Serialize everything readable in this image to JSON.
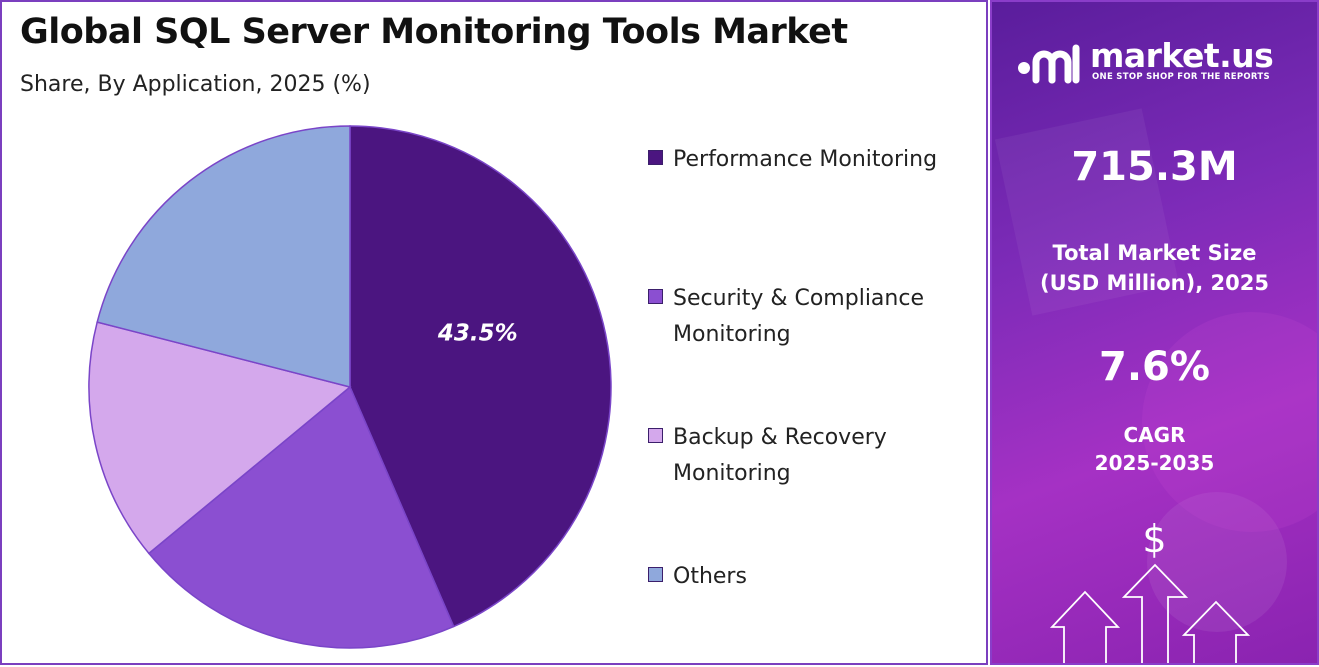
{
  "title": "Global SQL Server Monitoring Tools Market",
  "subtitle": "Share, By Application, 2025 (%)",
  "chart_data": {
    "type": "pie",
    "title": "Global SQL Server Monitoring Tools Market",
    "subtitle": "Share, By Application, 2025 (%)",
    "categories": [
      "Performance Monitoring",
      "Security & Compliance Monitoring",
      "Backup & Recovery Monitoring",
      "Others"
    ],
    "values": [
      43.5,
      20.5,
      15.0,
      21.0
    ],
    "colors": [
      "#4b1580",
      "#8b4fd1",
      "#d4a8ec",
      "#8fa8dc"
    ],
    "data_labels": [
      "43.5%",
      "",
      "",
      ""
    ],
    "legend_position": "right"
  },
  "legend": {
    "items": [
      {
        "label": "Performance Monitoring",
        "color": "#4b1580"
      },
      {
        "label": "Security & Compliance Monitoring",
        "color": "#8b4fd1"
      },
      {
        "label": "Backup & Recovery Monitoring",
        "color": "#d4a8ec"
      },
      {
        "label": "Others",
        "color": "#8fa8dc"
      }
    ]
  },
  "sidebar": {
    "brand": "market.us",
    "tagline": "ONE STOP SHOP FOR THE REPORTS",
    "market_size_value": "715.3M",
    "market_size_label_1": "Total Market Size",
    "market_size_label_2": "(USD Million), 2025",
    "cagr_value": "7.6%",
    "cagr_label_1": "CAGR",
    "cagr_label_2": "2025-2035",
    "dollar_symbol": "$",
    "logo_icon": "market-us-logo-icon",
    "growth_icon": "growth-arrows-icon"
  }
}
